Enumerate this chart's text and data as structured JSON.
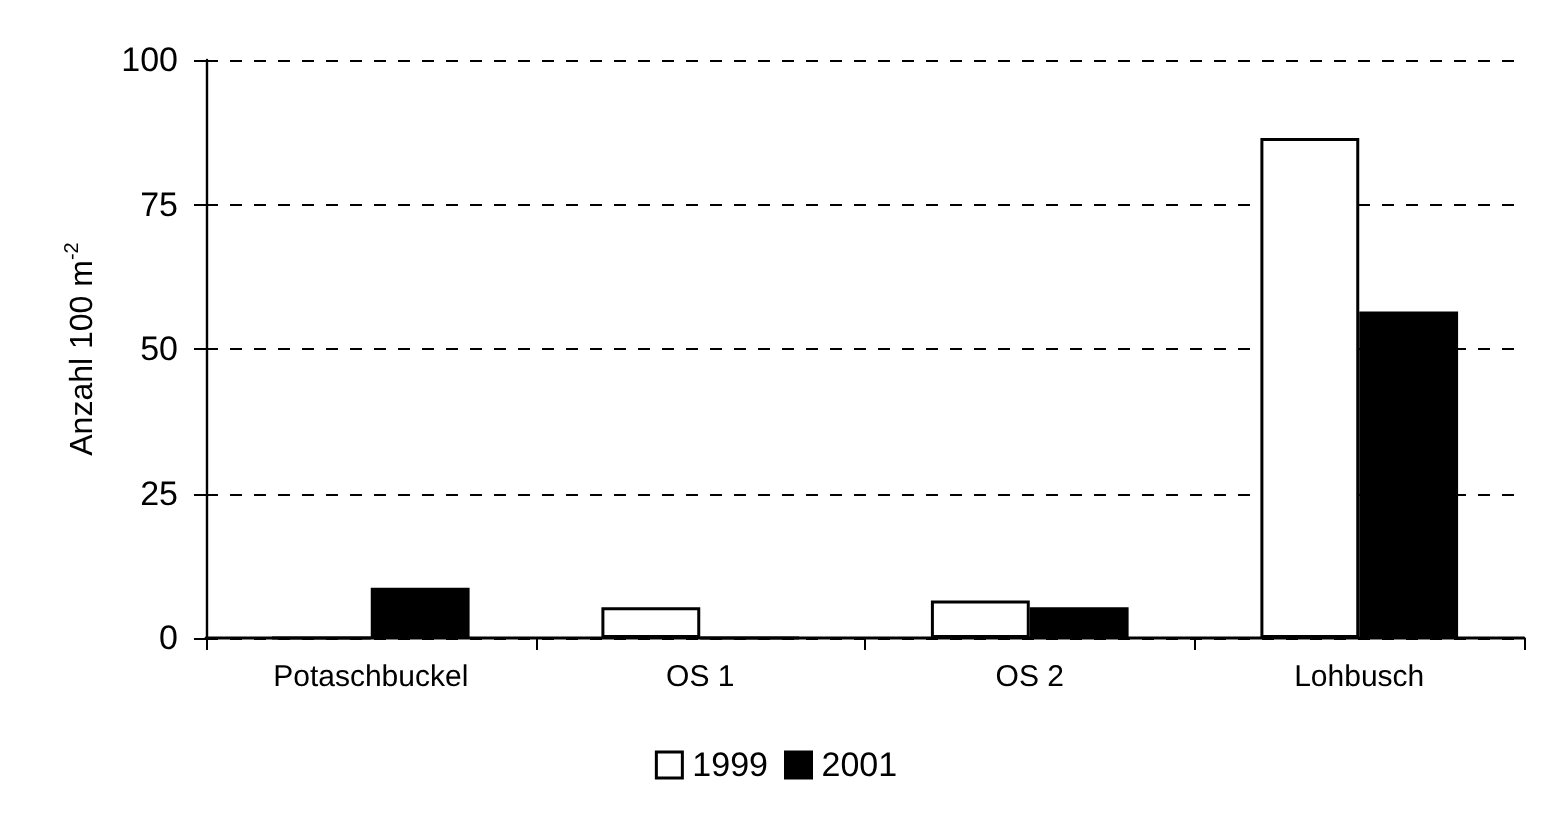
{
  "chart_data": {
    "type": "bar",
    "ylabel": "Anzahl 100 m$^{-2}$",
    "categories": [
      "Potaschbuckel",
      "OS 1",
      "OS 2",
      "Lohbusch"
    ],
    "series": [
      {
        "name": "1999",
        "color": "#ffffff",
        "values": [
          0,
          5.3,
          6.5,
          86.5
        ]
      },
      {
        "name": "2001",
        "color": "#000000",
        "values": [
          8.7,
          0,
          5.3,
          56.5
        ]
      }
    ],
    "ylim": [
      0,
      100
    ],
    "yticks": [
      0,
      25,
      50,
      75,
      100
    ],
    "grid": "y",
    "legend": "bottom"
  }
}
